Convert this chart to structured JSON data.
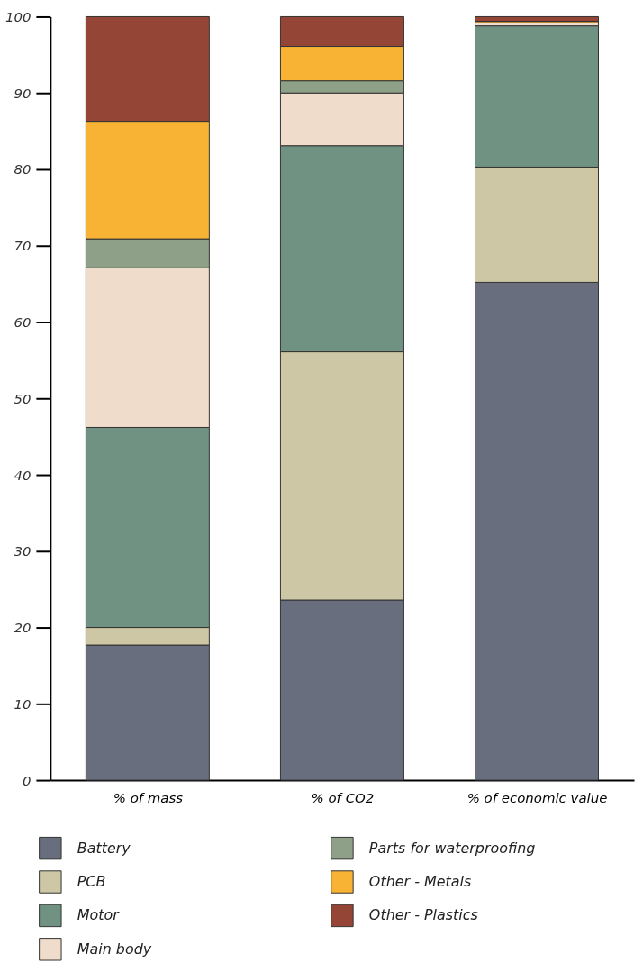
{
  "chart_data": {
    "type": "bar",
    "stacked": true,
    "categories": [
      "% of mass",
      "% of CO2",
      "% of economic value"
    ],
    "series": [
      {
        "name": "Battery",
        "color": "#686e7e",
        "values": [
          17.7,
          23.6,
          65.2
        ]
      },
      {
        "name": "PCB",
        "color": "#cdc7a5",
        "values": [
          2.3,
          32.5,
          15.1
        ]
      },
      {
        "name": "Motor",
        "color": "#709283",
        "values": [
          26.2,
          27.0,
          18.5
        ]
      },
      {
        "name": "Main body",
        "color": "#f0dcca",
        "values": [
          20.9,
          6.9,
          0.4
        ]
      },
      {
        "name": "Parts for waterproofing",
        "color": "#8fa088",
        "values": [
          3.8,
          1.6,
          0
        ]
      },
      {
        "name": "Other - Metals",
        "color": "#f8b335",
        "values": [
          15.4,
          4.5,
          0.2
        ]
      },
      {
        "name": "Other - Plastics",
        "color": "#944535",
        "values": [
          13.7,
          3.9,
          0.6
        ]
      }
    ],
    "ylim": [
      0,
      100
    ],
    "yticks": [
      0,
      10,
      20,
      30,
      40,
      50,
      60,
      70,
      80,
      90,
      100
    ],
    "grid": false,
    "legend": "bottom"
  }
}
